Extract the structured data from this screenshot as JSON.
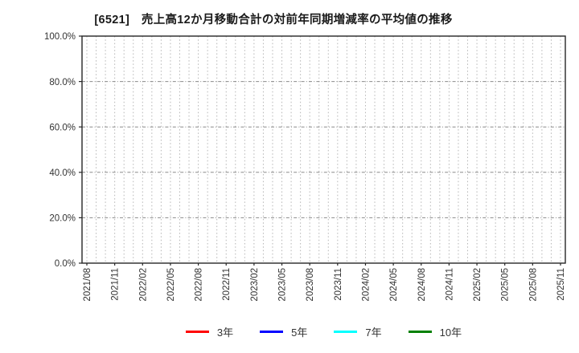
{
  "chart_data": {
    "type": "line",
    "title": "[6521]　売上高12か月移動合計の対前年同期増減率の平均値の推移",
    "x_tick_labels": [
      "2021/08",
      "2021/11",
      "2022/02",
      "2022/05",
      "2022/08",
      "2022/11",
      "2023/02",
      "2023/05",
      "2023/08",
      "2023/11",
      "2024/02",
      "2024/05",
      "2024/08",
      "2024/11",
      "2025/02",
      "2025/05",
      "2025/08",
      "2025/11"
    ],
    "x_months_total": 52,
    "x_label_every_months": 3,
    "y_tick_labels": [
      "0.0%",
      "20.0%",
      "40.0%",
      "60.0%",
      "80.0%",
      "100.0%"
    ],
    "ylim": [
      0,
      100
    ],
    "grid": true,
    "legend_position": "bottom",
    "series": [
      {
        "name": "3年",
        "color": "#ff0000",
        "values": []
      },
      {
        "name": "5年",
        "color": "#0000ff",
        "values": []
      },
      {
        "name": "7年",
        "color": "#00ffff",
        "values": []
      },
      {
        "name": "10年",
        "color": "#008000",
        "values": []
      }
    ],
    "plot_area_empty": true,
    "colors": {
      "axis": "#262626",
      "grid_vertical": "#b5b5b5",
      "grid_horizontal": "#8a8a8a",
      "tick_label": "#333333",
      "background": "#ffffff"
    }
  }
}
